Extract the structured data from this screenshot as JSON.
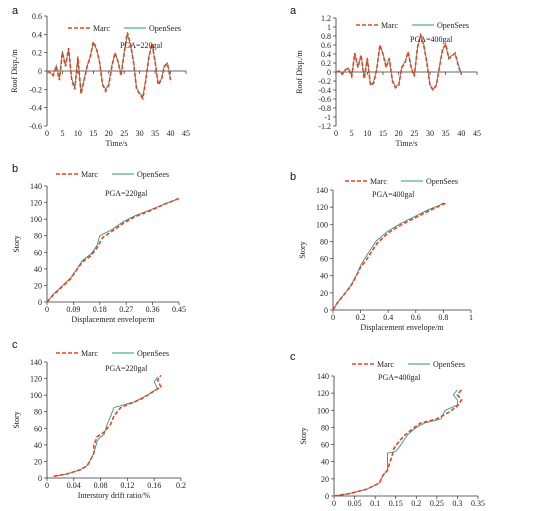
{
  "legend": {
    "marc": "Marc",
    "opensees": "OpenSees"
  },
  "colors": {
    "marc": "#e8431f",
    "opensees": "#2a9a8a"
  },
  "caption": "",
  "chart_data": [
    {
      "id": "a1",
      "type": "line",
      "letter": "a",
      "annotation": "PGA=220gal",
      "xlabel": "Time/s",
      "ylabel": "Roof Disp./m",
      "xlim": [
        0,
        45
      ],
      "ylim": [
        -0.6,
        0.6
      ],
      "xticks": [
        "0",
        "5",
        "10",
        "15",
        "20",
        "25",
        "30",
        "35",
        "40",
        "45"
      ],
      "yticks": [
        "-0.6",
        "-0.4",
        "-0.2",
        "0",
        "0.2",
        "0.4",
        "0.6"
      ],
      "series": [
        {
          "name": "Marc",
          "x": [
            0,
            1,
            2,
            3,
            4,
            5,
            6,
            7,
            8,
            9,
            10,
            11,
            12,
            13,
            14,
            15,
            16,
            17,
            18,
            19,
            20,
            21,
            22,
            23,
            24,
            25,
            26,
            27,
            28,
            29,
            30,
            31,
            32,
            33,
            34,
            35,
            36,
            37,
            38,
            39,
            40
          ],
          "y": [
            0,
            -0.02,
            -0.05,
            0.05,
            -0.1,
            0.2,
            0.05,
            0.25,
            -0.1,
            -0.2,
            0.15,
            -0.25,
            -0.1,
            0.05,
            0.15,
            0.32,
            0.25,
            0.1,
            -0.15,
            -0.22,
            -0.15,
            0.05,
            0.2,
            0.1,
            -0.05,
            0.2,
            0.42,
            0.3,
            0.1,
            -0.2,
            -0.25,
            -0.3,
            -0.1,
            0.15,
            0.3,
            0.1,
            -0.15,
            -0.1,
            0.05,
            0.08,
            -0.1
          ]
        },
        {
          "name": "OpenSees",
          "x": [
            0,
            1,
            2,
            3,
            4,
            5,
            6,
            7,
            8,
            9,
            10,
            11,
            12,
            13,
            14,
            15,
            16,
            17,
            18,
            19,
            20,
            21,
            22,
            23,
            24,
            25,
            26,
            27,
            28,
            29,
            30,
            31,
            32,
            33,
            34,
            35,
            36,
            37,
            38,
            39,
            40
          ],
          "y": [
            0,
            -0.02,
            -0.04,
            0.06,
            -0.08,
            0.22,
            0.06,
            0.24,
            -0.08,
            -0.18,
            0.16,
            -0.23,
            -0.09,
            0.06,
            0.16,
            0.3,
            0.24,
            0.11,
            -0.14,
            -0.2,
            -0.14,
            0.06,
            0.19,
            0.11,
            -0.04,
            0.21,
            0.4,
            0.29,
            0.11,
            -0.19,
            -0.24,
            -0.28,
            -0.09,
            0.16,
            0.29,
            0.11,
            -0.13,
            -0.09,
            0.06,
            0.09,
            -0.09
          ]
        }
      ]
    },
    {
      "id": "a2",
      "type": "line",
      "letter": "a",
      "annotation": "PGA=400gal",
      "xlabel": "Time/s",
      "ylabel": "Roof Disp./m",
      "xlim": [
        0,
        45
      ],
      "ylim": [
        -1.2,
        1.2
      ],
      "xticks": [
        "0",
        "5",
        "10",
        "15",
        "20",
        "25",
        "30",
        "35",
        "40",
        "45"
      ],
      "yticks": [
        "-1.2",
        "-1",
        "-0.8",
        "-0.6",
        "-0.4",
        "-0.2",
        "0",
        "0.2",
        "0.4",
        "0.6",
        "0.8",
        "1",
        "1.2"
      ],
      "series": [
        {
          "name": "Marc",
          "x": [
            0,
            1,
            2,
            3,
            4,
            5,
            6,
            7,
            8,
            9,
            10,
            11,
            12,
            13,
            14,
            15,
            16,
            17,
            18,
            19,
            20,
            21,
            22,
            23,
            24,
            25,
            26,
            27,
            28,
            29,
            30,
            31,
            32,
            33,
            34,
            35,
            36,
            37,
            38,
            39,
            40
          ],
          "y": [
            0,
            0.02,
            -0.05,
            0.05,
            0.08,
            -0.1,
            0.42,
            0.1,
            0.38,
            -0.15,
            0.3,
            -0.3,
            -0.25,
            0.05,
            0.6,
            0.4,
            0.1,
            0.3,
            -0.2,
            -0.35,
            -0.3,
            0.1,
            0.2,
            0.45,
            0.1,
            -0.1,
            0.55,
            0.82,
            0.6,
            0.2,
            -0.3,
            -0.4,
            -0.3,
            0.1,
            0.5,
            0.62,
            0.3,
            0.35,
            0.42,
            0.15,
            -0.05
          ]
        },
        {
          "name": "OpenSees",
          "x": [
            0,
            1,
            2,
            3,
            4,
            5,
            6,
            7,
            8,
            9,
            10,
            11,
            12,
            13,
            14,
            15,
            16,
            17,
            18,
            19,
            20,
            21,
            22,
            23,
            24,
            25,
            26,
            27,
            28,
            29,
            30,
            31,
            32,
            33,
            34,
            35,
            36,
            37,
            38,
            39,
            40
          ],
          "y": [
            0,
            0.03,
            -0.04,
            0.06,
            0.09,
            -0.08,
            0.4,
            0.12,
            0.36,
            -0.12,
            0.32,
            -0.28,
            -0.22,
            0.07,
            0.58,
            0.42,
            0.12,
            0.32,
            -0.18,
            -0.32,
            -0.28,
            0.12,
            0.22,
            0.43,
            0.12,
            -0.08,
            0.53,
            0.8,
            0.62,
            0.22,
            -0.28,
            -0.38,
            -0.28,
            0.12,
            0.48,
            0.6,
            0.32,
            0.37,
            0.4,
            0.17,
            -0.03
          ]
        }
      ]
    },
    {
      "id": "b1",
      "type": "line",
      "letter": "b",
      "annotation": "PGA=220gal",
      "xlabel": "Displacement envelope/m",
      "ylabel": "Story",
      "xlim": [
        0,
        0.45
      ],
      "ylim": [
        0,
        140
      ],
      "xticks": [
        "0",
        "0.09",
        "0.18",
        "0.27",
        "0.36",
        "0.45"
      ],
      "yticks": [
        "0",
        "20",
        "40",
        "60",
        "80",
        "100",
        "120",
        "140"
      ],
      "series": [
        {
          "name": "Marc",
          "x": [
            0,
            0.02,
            0.05,
            0.08,
            0.1,
            0.12,
            0.15,
            0.17,
            0.19,
            0.22,
            0.26,
            0.3,
            0.35,
            0.4,
            0.43,
            0.45
          ],
          "y": [
            0,
            8,
            18,
            28,
            38,
            48,
            56,
            65,
            78,
            85,
            95,
            103,
            110,
            118,
            122,
            125
          ]
        },
        {
          "name": "OpenSees",
          "x": [
            0,
            0.02,
            0.05,
            0.08,
            0.1,
            0.12,
            0.15,
            0.17,
            0.18,
            0.22,
            0.26,
            0.3,
            0.35,
            0.4,
            0.43,
            0.45
          ],
          "y": [
            0,
            9,
            19,
            29,
            39,
            50,
            58,
            68,
            80,
            87,
            97,
            104,
            111,
            118,
            122,
            125
          ]
        }
      ]
    },
    {
      "id": "b2",
      "type": "line",
      "letter": "b",
      "annotation": "PGA=400gal",
      "xlabel": "Displacement envelope/m",
      "ylabel": "Story",
      "xlim": [
        0,
        1
      ],
      "ylim": [
        0,
        140
      ],
      "xticks": [
        "0",
        "0.2",
        "0.4",
        "0.6",
        "0.8",
        "1"
      ],
      "yticks": [
        "0",
        "20",
        "40",
        "60",
        "80",
        "100",
        "120",
        "140"
      ],
      "series": [
        {
          "name": "Marc",
          "x": [
            0,
            0.03,
            0.08,
            0.13,
            0.17,
            0.2,
            0.24,
            0.28,
            0.32,
            0.4,
            0.5,
            0.6,
            0.7,
            0.78,
            0.82
          ],
          "y": [
            0,
            8,
            18,
            28,
            40,
            50,
            58,
            68,
            78,
            90,
            100,
            108,
            116,
            122,
            125
          ]
        },
        {
          "name": "OpenSees",
          "x": [
            0,
            0.03,
            0.08,
            0.13,
            0.17,
            0.2,
            0.23,
            0.27,
            0.31,
            0.39,
            0.49,
            0.59,
            0.69,
            0.77,
            0.8
          ],
          "y": [
            0,
            8,
            18,
            29,
            41,
            52,
            60,
            70,
            80,
            91,
            101,
            109,
            117,
            122,
            125
          ]
        }
      ]
    },
    {
      "id": "c1",
      "type": "line",
      "letter": "c",
      "annotation": "PGA=220gal",
      "xlabel": "Interstory drift ratio/%",
      "ylabel": "Story",
      "xlim": [
        0,
        0.2
      ],
      "ylim": [
        0,
        140
      ],
      "xticks": [
        "0",
        "0.04",
        "0.08",
        "0.12",
        "0.16",
        "0.2"
      ],
      "yticks": [
        "0",
        "20",
        "40",
        "60",
        "80",
        "100",
        "120",
        "140"
      ],
      "series": [
        {
          "name": "Marc",
          "x": [
            0.01,
            0.03,
            0.05,
            0.06,
            0.065,
            0.07,
            0.07,
            0.075,
            0.085,
            0.095,
            0.1,
            0.11,
            0.14,
            0.16,
            0.17,
            0.165,
            0.17
          ],
          "y": [
            2,
            5,
            10,
            15,
            22,
            30,
            40,
            50,
            55,
            65,
            75,
            85,
            95,
            105,
            110,
            118,
            124
          ]
        },
        {
          "name": "OpenSees",
          "x": [
            0.01,
            0.03,
            0.05,
            0.06,
            0.065,
            0.07,
            0.075,
            0.08,
            0.085,
            0.09,
            0.095,
            0.1,
            0.13,
            0.15,
            0.165,
            0.16,
            0.165
          ],
          "y": [
            2,
            5,
            10,
            15,
            22,
            30,
            45,
            50,
            52,
            65,
            75,
            85,
            92,
            100,
            108,
            116,
            122
          ]
        }
      ]
    },
    {
      "id": "c2",
      "type": "line",
      "letter": "c",
      "annotation": "PGA=400gal",
      "xlabel": "",
      "ylabel": "Story",
      "xlim": [
        0,
        0.35
      ],
      "ylim": [
        0,
        140
      ],
      "xticks": [
        "0",
        "0.05",
        "0.1",
        "0.15",
        "0.2",
        "0.25",
        "0.3",
        "0.35"
      ],
      "yticks": [
        "0",
        "20",
        "40",
        "60",
        "80",
        "100",
        "120",
        "140"
      ],
      "series": [
        {
          "name": "Marc",
          "x": [
            0,
            0.04,
            0.08,
            0.11,
            0.12,
            0.13,
            0.135,
            0.14,
            0.145,
            0.155,
            0.17,
            0.19,
            0.21,
            0.25,
            0.28,
            0.3,
            0.31,
            0.3,
            0.31
          ],
          "y": [
            0,
            3,
            8,
            15,
            25,
            30,
            38,
            45,
            55,
            62,
            70,
            78,
            85,
            90,
            98,
            105,
            112,
            118,
            124
          ]
        },
        {
          "name": "OpenSees",
          "x": [
            0,
            0.04,
            0.08,
            0.11,
            0.12,
            0.13,
            0.13,
            0.15,
            0.16,
            0.17,
            0.18,
            0.2,
            0.22,
            0.26,
            0.27,
            0.3,
            0.3,
            0.29,
            0.3
          ],
          "y": [
            0,
            3,
            8,
            15,
            25,
            30,
            50,
            52,
            58,
            65,
            72,
            80,
            85,
            90,
            100,
            106,
            112,
            118,
            124
          ]
        }
      ]
    }
  ]
}
